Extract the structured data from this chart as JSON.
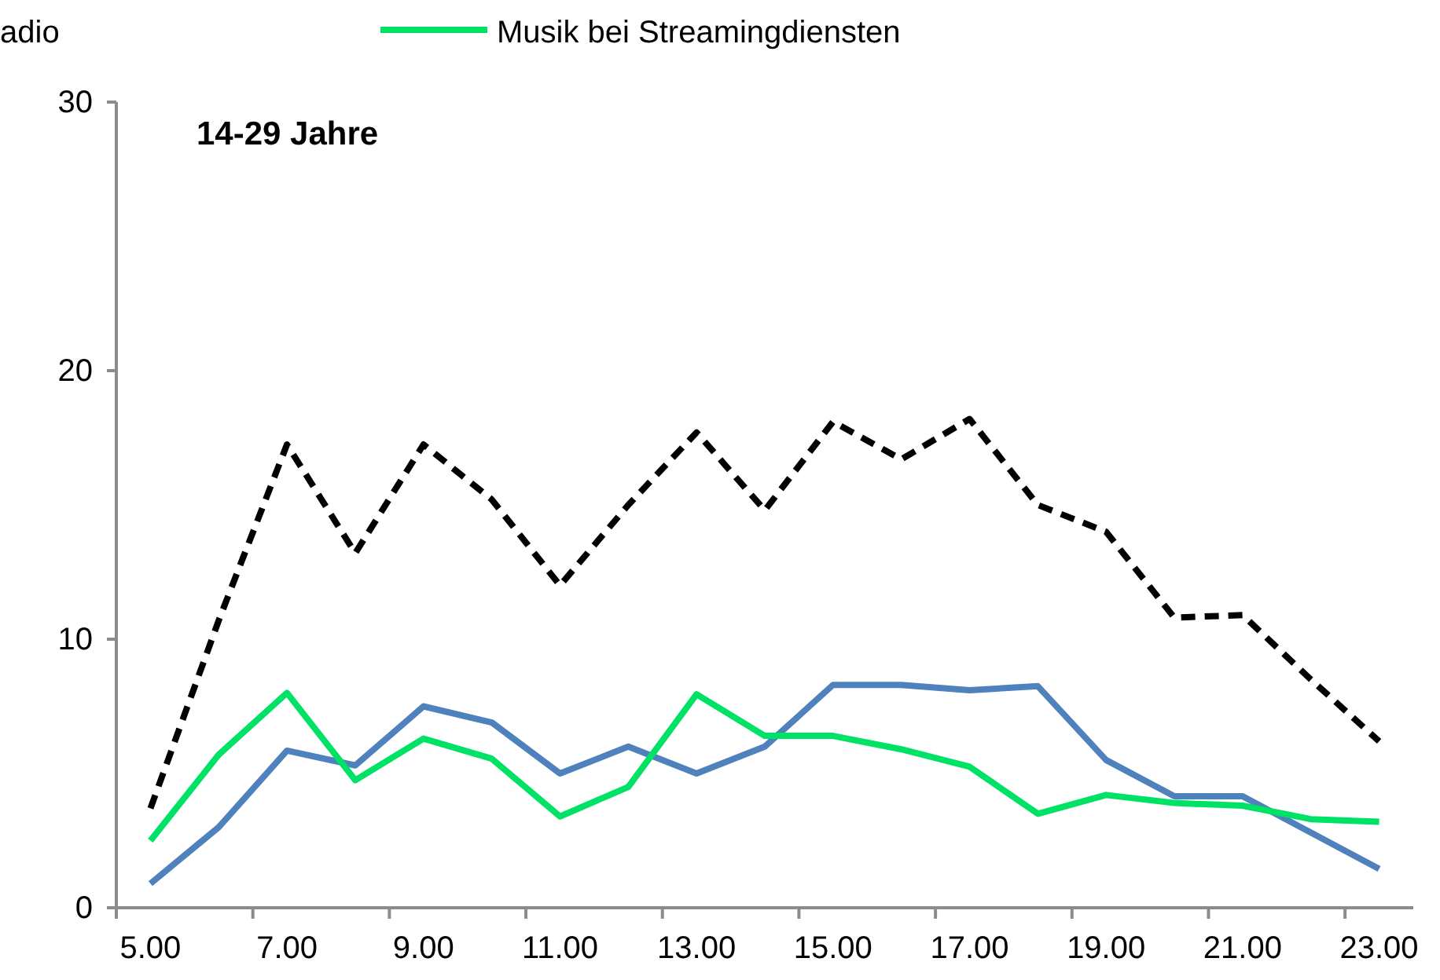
{
  "chart_data": {
    "type": "line",
    "title": "14-29 Jahre",
    "annotations": [
      "adio"
    ],
    "categories": [
      "5.00",
      null,
      "7.00",
      null,
      "9.00",
      null,
      "11.00",
      null,
      "13.00",
      null,
      "15.00",
      null,
      "17.00",
      null,
      "19.00",
      null,
      "21.00",
      null,
      "23.00"
    ],
    "series": [
      {
        "color": "#000000",
        "line_style": "dashed",
        "values": [
          3.7,
          10.7,
          17.25,
          13.2,
          17.25,
          15.2,
          12.0,
          15.0,
          17.7,
          14.8,
          18.1,
          16.7,
          18.2,
          15.0,
          14.0,
          10.8,
          10.9,
          8.5,
          6.2
        ]
      },
      {
        "color": "#4f81bd",
        "values": [
          0.9,
          3.0,
          5.85,
          5.3,
          7.5,
          6.9,
          5.0,
          6.0,
          5.0,
          6.0,
          8.3,
          8.3,
          8.1,
          8.25,
          5.5,
          4.15,
          4.15,
          2.8,
          1.45
        ]
      },
      {
        "name": "Musik bei Streamingdiensten",
        "color": "#00e266",
        "values": [
          2.5,
          5.7,
          8.0,
          4.75,
          6.3,
          5.55,
          3.4,
          4.5,
          7.95,
          6.4,
          6.4,
          5.9,
          5.25,
          3.5,
          4.2,
          3.9,
          3.8,
          3.3,
          3.2
        ]
      }
    ],
    "ylim": [
      0,
      30
    ],
    "yticks": [
      0,
      10,
      20,
      30
    ],
    "grid": false,
    "legend": "top",
    "marker": "none"
  }
}
